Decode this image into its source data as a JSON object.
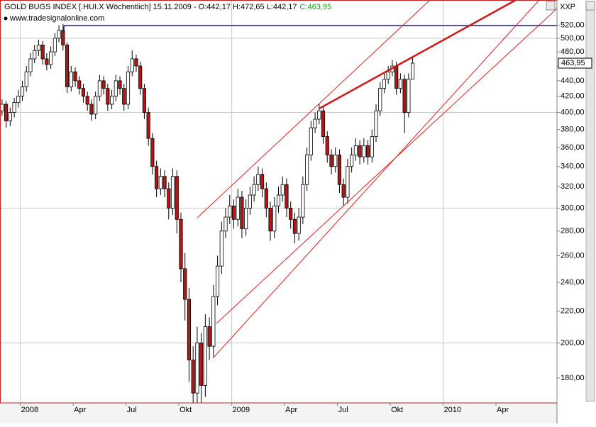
{
  "chart_data": {
    "type": "candlestick",
    "title": "GOLD BUGS INDEX [.HUI.X Wöchentlich] 15.11.2009 - O:442,17 H:472,65 L:442,17",
    "title_close": "C:463,95",
    "subtitle": "www.tradesignalonline.com",
    "symbol_label": "XXP",
    "log_scale": true,
    "grid": true,
    "up_color": "#ffffff",
    "down_color": "#b01818",
    "ylim": [
      167,
      561
    ],
    "yticks": [
      {
        "value": 180,
        "label": "180,00"
      },
      {
        "value": 200,
        "label": "200,00"
      },
      {
        "value": 220,
        "label": "220,00"
      },
      {
        "value": 240,
        "label": "240,00"
      },
      {
        "value": 260,
        "label": "260,00"
      },
      {
        "value": 280,
        "label": "280,00"
      },
      {
        "value": 300,
        "label": "300,00"
      },
      {
        "value": 320,
        "label": "320,00"
      },
      {
        "value": 340,
        "label": "340,00"
      },
      {
        "value": 360,
        "label": "360,00"
      },
      {
        "value": 380,
        "label": "380,00"
      },
      {
        "value": 400,
        "label": "400,00"
      },
      {
        "value": 420,
        "label": "420,00"
      },
      {
        "value": 440,
        "label": "440,00"
      },
      {
        "value": 460,
        "label": "460,00"
      },
      {
        "value": 480,
        "label": "480,00"
      },
      {
        "value": 500,
        "label": "500,00"
      },
      {
        "value": 520,
        "label": "520,00"
      }
    ],
    "last_price": {
      "value": 463.95,
      "label": "463,95"
    },
    "categories": [
      null,
      null,
      null,
      null,
      null,
      "2008",
      null,
      null,
      null,
      null,
      null,
      null,
      null,
      null,
      null,
      null,
      null,
      null,
      "Apr",
      null,
      null,
      null,
      null,
      null,
      null,
      null,
      null,
      null,
      null,
      null,
      null,
      "Jul",
      null,
      null,
      null,
      null,
      null,
      null,
      null,
      null,
      null,
      null,
      null,
      null,
      "Okt",
      null,
      null,
      null,
      null,
      null,
      null,
      null,
      null,
      null,
      null,
      null,
      null,
      "2009",
      null,
      null,
      null,
      null,
      null,
      null,
      null,
      null,
      null,
      null,
      null,
      null,
      "Apr",
      null,
      null,
      null,
      null,
      null,
      null,
      null,
      null,
      null,
      null,
      null,
      null,
      "Jul",
      null,
      null,
      null,
      null,
      null,
      null,
      null,
      null,
      null,
      null,
      null,
      null,
      "Okt",
      null,
      null,
      null,
      null,
      null,
      null,
      null,
      null,
      null,
      null,
      null,
      null,
      "2010",
      null,
      null,
      null,
      null,
      null,
      null,
      null,
      null,
      null,
      null,
      null,
      null,
      "Apr",
      null,
      null,
      null,
      null,
      null,
      null,
      null,
      null,
      null,
      null,
      null,
      null,
      null,
      null
    ],
    "open": [
      402,
      410,
      390,
      400,
      412,
      420,
      432,
      452,
      470,
      482,
      490,
      470,
      462,
      480,
      500,
      512,
      490,
      432,
      452,
      440,
      430,
      420,
      410,
      398,
      420,
      440,
      430,
      410,
      420,
      440,
      430,
      410,
      452,
      470,
      460,
      430,
      400,
      370,
      340,
      318,
      330,
      318,
      300,
      330,
      290,
      250,
      228,
      190,
      172,
      200,
      176,
      210,
      198,
      230,
      252,
      280,
      292,
      302,
      290,
      310,
      282,
      300,
      312,
      322,
      332,
      318,
      300,
      280,
      302,
      312,
      322,
      300,
      290,
      278,
      292,
      322,
      352,
      382,
      392,
      402,
      372,
      352,
      340,
      352,
      322,
      310,
      340,
      352,
      362,
      350,
      362,
      350,
      372,
      402,
      430,
      442,
      452,
      460,
      430,
      442,
      400,
      442.17,
      null,
      null,
      null,
      null,
      null,
      null,
      null,
      null,
      null,
      null,
      null,
      null,
      null,
      null,
      null,
      null,
      null,
      null,
      null,
      null,
      null,
      null,
      null,
      null,
      null,
      null,
      null,
      null,
      null,
      null,
      null,
      null,
      null,
      null,
      null
    ],
    "high": [
      416,
      414,
      406,
      418,
      428,
      440,
      460,
      478,
      490,
      498,
      496,
      478,
      488,
      508,
      520,
      522,
      494,
      460,
      458,
      446,
      436,
      426,
      416,
      426,
      448,
      446,
      436,
      428,
      448,
      446,
      436,
      460,
      482,
      476,
      466,
      436,
      406,
      376,
      346,
      338,
      336,
      324,
      338,
      336,
      296,
      262,
      236,
      198,
      210,
      206,
      218,
      216,
      238,
      260,
      288,
      300,
      312,
      308,
      318,
      316,
      308,
      320,
      330,
      340,
      338,
      324,
      306,
      310,
      320,
      330,
      328,
      306,
      296,
      300,
      330,
      360,
      390,
      400,
      410,
      408,
      378,
      358,
      360,
      358,
      328,
      348,
      360,
      370,
      368,
      370,
      368,
      380,
      410,
      438,
      450,
      460,
      468,
      466,
      450,
      448,
      450,
      472.65,
      null,
      null,
      null,
      null,
      null,
      null,
      null,
      null,
      null,
      null,
      null,
      null,
      null,
      null,
      null,
      null,
      null,
      null,
      null,
      null,
      null,
      null,
      null,
      null,
      null,
      null,
      null,
      null,
      null,
      null,
      null,
      null,
      null,
      null,
      null
    ],
    "low": [
      396,
      382,
      384,
      394,
      406,
      414,
      426,
      446,
      464,
      474,
      462,
      454,
      456,
      474,
      494,
      482,
      424,
      426,
      432,
      422,
      412,
      402,
      390,
      392,
      414,
      422,
      402,
      404,
      414,
      422,
      402,
      404,
      446,
      452,
      422,
      392,
      362,
      332,
      310,
      312,
      310,
      290,
      294,
      278,
      240,
      214,
      178,
      160,
      164,
      166,
      170,
      190,
      192,
      224,
      246,
      274,
      286,
      282,
      284,
      274,
      276,
      294,
      306,
      316,
      310,
      292,
      272,
      274,
      296,
      306,
      292,
      282,
      270,
      272,
      286,
      316,
      346,
      376,
      386,
      364,
      344,
      332,
      334,
      314,
      302,
      304,
      334,
      346,
      342,
      344,
      342,
      344,
      366,
      396,
      424,
      436,
      446,
      422,
      424,
      376,
      394,
      442.17,
      null,
      null,
      null,
      null,
      null,
      null,
      null,
      null,
      null,
      null,
      null,
      null,
      null,
      null,
      null,
      null,
      null,
      null,
      null,
      null,
      null,
      null,
      null,
      null,
      null,
      null,
      null,
      null,
      null,
      null,
      null,
      null,
      null,
      null,
      null
    ],
    "close": [
      410,
      390,
      400,
      412,
      420,
      432,
      452,
      470,
      482,
      490,
      470,
      462,
      480,
      500,
      512,
      490,
      432,
      452,
      440,
      430,
      420,
      410,
      398,
      420,
      440,
      430,
      410,
      420,
      440,
      430,
      410,
      452,
      470,
      460,
      430,
      400,
      370,
      340,
      318,
      330,
      318,
      300,
      330,
      290,
      250,
      228,
      190,
      172,
      200,
      176,
      210,
      198,
      230,
      252,
      280,
      292,
      302,
      290,
      310,
      282,
      300,
      312,
      322,
      332,
      318,
      300,
      280,
      302,
      312,
      322,
      300,
      290,
      278,
      292,
      322,
      352,
      382,
      392,
      402,
      372,
      352,
      340,
      352,
      322,
      310,
      340,
      352,
      362,
      350,
      362,
      350,
      372,
      402,
      430,
      442,
      452,
      460,
      430,
      442,
      400,
      442.17,
      463.95,
      null,
      null,
      null,
      null,
      null,
      null,
      null,
      null,
      null,
      null,
      null,
      null,
      null,
      null,
      null,
      null,
      null,
      null,
      null,
      null,
      null,
      null,
      null,
      null,
      null,
      null,
      null,
      null,
      null,
      null,
      null,
      null,
      null,
      null,
      null
    ]
  }
}
